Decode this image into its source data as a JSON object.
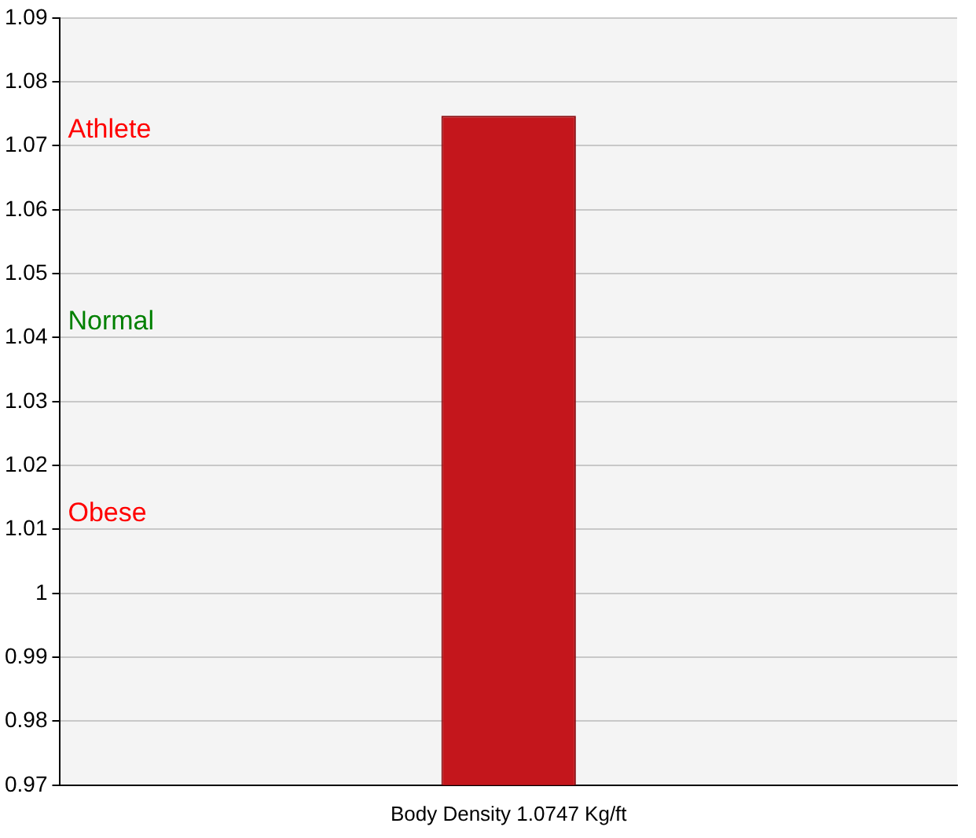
{
  "chart_data": {
    "type": "bar",
    "categories": [
      "Body Density 1.0747 Kg/ft"
    ],
    "values": [
      1.0747
    ],
    "color": "#c4161c",
    "ylim": [
      0.97,
      1.09
    ],
    "yticks": [
      0.97,
      0.98,
      0.99,
      1,
      1.01,
      1.02,
      1.03,
      1.04,
      1.05,
      1.06,
      1.07,
      1.08,
      1.09
    ],
    "annotations": [
      "Athlete",
      "Normal",
      "Obese"
    ],
    "grid": "y"
  }
}
